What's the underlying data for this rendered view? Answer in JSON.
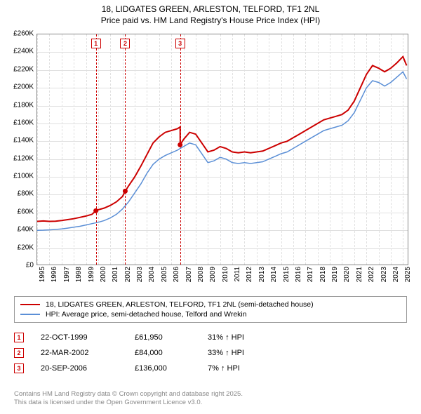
{
  "title": {
    "line1": "18, LIDGATES GREEN, ARLESTON, TELFORD, TF1 2NL",
    "line2": "Price paid vs. HM Land Registry's House Price Index (HPI)",
    "fontsize": 12,
    "color": "#000000"
  },
  "chart": {
    "type": "line",
    "background_color": "#ffffff",
    "grid_color": "#e0e0e0",
    "border_color": "#888888",
    "xlim": [
      1995,
      2025.5
    ],
    "ylim": [
      0,
      260000
    ],
    "ytick_step": 20000,
    "yticks": [
      "£0",
      "£20K",
      "£40K",
      "£60K",
      "£80K",
      "£100K",
      "£120K",
      "£140K",
      "£160K",
      "£180K",
      "£200K",
      "£220K",
      "£240K",
      "£260K"
    ],
    "xticks": [
      "1995",
      "1996",
      "1997",
      "1998",
      "1999",
      "2000",
      "2001",
      "2002",
      "2003",
      "2004",
      "2005",
      "2006",
      "2007",
      "2008",
      "2009",
      "2010",
      "2011",
      "2012",
      "2013",
      "2014",
      "2015",
      "2016",
      "2017",
      "2018",
      "2019",
      "2020",
      "2021",
      "2022",
      "2023",
      "2024",
      "2025"
    ],
    "label_fontsize": 10
  },
  "series": {
    "price_paid": {
      "label": "18, LIDGATES GREEN, ARLESTON, TELFORD, TF1 2NL (semi-detached house)",
      "color": "#cc0000",
      "line_width": 2,
      "data": [
        [
          1995.0,
          50000
        ],
        [
          1995.5,
          50500
        ],
        [
          1996.0,
          50000
        ],
        [
          1996.5,
          50200
        ],
        [
          1997.0,
          51000
        ],
        [
          1997.5,
          52000
        ],
        [
          1998.0,
          53000
        ],
        [
          1998.5,
          54500
        ],
        [
          1999.0,
          56000
        ],
        [
          1999.5,
          58000
        ],
        [
          1999.81,
          61950
        ],
        [
          2000.0,
          63000
        ],
        [
          2000.5,
          65000
        ],
        [
          2001.0,
          68000
        ],
        [
          2001.5,
          72000
        ],
        [
          2002.0,
          78000
        ],
        [
          2002.22,
          84000
        ],
        [
          2002.5,
          90000
        ],
        [
          2003.0,
          100000
        ],
        [
          2003.5,
          112000
        ],
        [
          2004.0,
          125000
        ],
        [
          2004.5,
          138000
        ],
        [
          2005.0,
          145000
        ],
        [
          2005.5,
          150000
        ],
        [
          2006.0,
          152000
        ],
        [
          2006.5,
          154000
        ],
        [
          2006.72,
          156000
        ],
        [
          2006.73,
          136000
        ],
        [
          2007.0,
          142000
        ],
        [
          2007.5,
          150000
        ],
        [
          2008.0,
          148000
        ],
        [
          2008.5,
          138000
        ],
        [
          2009.0,
          128000
        ],
        [
          2009.5,
          130000
        ],
        [
          2010.0,
          134000
        ],
        [
          2010.5,
          132000
        ],
        [
          2011.0,
          128000
        ],
        [
          2011.5,
          127000
        ],
        [
          2012.0,
          128000
        ],
        [
          2012.5,
          127000
        ],
        [
          2013.0,
          128000
        ],
        [
          2013.5,
          129000
        ],
        [
          2014.0,
          132000
        ],
        [
          2014.5,
          135000
        ],
        [
          2015.0,
          138000
        ],
        [
          2015.5,
          140000
        ],
        [
          2016.0,
          144000
        ],
        [
          2016.5,
          148000
        ],
        [
          2017.0,
          152000
        ],
        [
          2017.5,
          156000
        ],
        [
          2018.0,
          160000
        ],
        [
          2018.5,
          164000
        ],
        [
          2019.0,
          166000
        ],
        [
          2019.5,
          168000
        ],
        [
          2020.0,
          170000
        ],
        [
          2020.5,
          175000
        ],
        [
          2021.0,
          185000
        ],
        [
          2021.5,
          200000
        ],
        [
          2022.0,
          215000
        ],
        [
          2022.5,
          225000
        ],
        [
          2023.0,
          222000
        ],
        [
          2023.5,
          218000
        ],
        [
          2024.0,
          222000
        ],
        [
          2024.5,
          228000
        ],
        [
          2025.0,
          235000
        ],
        [
          2025.3,
          225000
        ]
      ]
    },
    "hpi": {
      "label": "HPI: Average price, semi-detached house, Telford and Wrekin",
      "color": "#5b8fd6",
      "line_width": 1.5,
      "data": [
        [
          1995.0,
          40000
        ],
        [
          1995.5,
          40200
        ],
        [
          1996.0,
          40500
        ],
        [
          1996.5,
          41000
        ],
        [
          1997.0,
          41500
        ],
        [
          1997.5,
          42500
        ],
        [
          1998.0,
          43500
        ],
        [
          1998.5,
          44500
        ],
        [
          1999.0,
          46000
        ],
        [
          1999.5,
          47500
        ],
        [
          2000.0,
          49000
        ],
        [
          2000.5,
          51000
        ],
        [
          2001.0,
          54000
        ],
        [
          2001.5,
          58000
        ],
        [
          2002.0,
          64000
        ],
        [
          2002.5,
          72000
        ],
        [
          2003.0,
          82000
        ],
        [
          2003.5,
          92000
        ],
        [
          2004.0,
          104000
        ],
        [
          2004.5,
          114000
        ],
        [
          2005.0,
          120000
        ],
        [
          2005.5,
          124000
        ],
        [
          2006.0,
          127000
        ],
        [
          2006.5,
          130000
        ],
        [
          2007.0,
          134000
        ],
        [
          2007.5,
          138000
        ],
        [
          2008.0,
          136000
        ],
        [
          2008.5,
          126000
        ],
        [
          2009.0,
          116000
        ],
        [
          2009.5,
          118000
        ],
        [
          2010.0,
          122000
        ],
        [
          2010.5,
          120000
        ],
        [
          2011.0,
          116000
        ],
        [
          2011.5,
          115000
        ],
        [
          2012.0,
          116000
        ],
        [
          2012.5,
          115000
        ],
        [
          2013.0,
          116000
        ],
        [
          2013.5,
          117000
        ],
        [
          2014.0,
          120000
        ],
        [
          2014.5,
          123000
        ],
        [
          2015.0,
          126000
        ],
        [
          2015.5,
          128000
        ],
        [
          2016.0,
          132000
        ],
        [
          2016.5,
          136000
        ],
        [
          2017.0,
          140000
        ],
        [
          2017.5,
          144000
        ],
        [
          2018.0,
          148000
        ],
        [
          2018.5,
          152000
        ],
        [
          2019.0,
          154000
        ],
        [
          2019.5,
          156000
        ],
        [
          2020.0,
          158000
        ],
        [
          2020.5,
          163000
        ],
        [
          2021.0,
          172000
        ],
        [
          2021.5,
          186000
        ],
        [
          2022.0,
          200000
        ],
        [
          2022.5,
          208000
        ],
        [
          2023.0,
          206000
        ],
        [
          2023.5,
          202000
        ],
        [
          2024.0,
          206000
        ],
        [
          2024.5,
          212000
        ],
        [
          2025.0,
          218000
        ],
        [
          2025.3,
          210000
        ]
      ]
    }
  },
  "markers": [
    {
      "n": "1",
      "x": 1999.81,
      "y": 61950
    },
    {
      "n": "2",
      "x": 2002.22,
      "y": 84000
    },
    {
      "n": "3",
      "x": 2006.72,
      "y": 136000
    }
  ],
  "legend": {
    "border_color": "#999999",
    "fontsize": 10.5
  },
  "transactions": [
    {
      "n": "1",
      "date": "22-OCT-1999",
      "price": "£61,950",
      "pct": "31% ↑ HPI"
    },
    {
      "n": "2",
      "date": "22-MAR-2002",
      "price": "£84,000",
      "pct": "33% ↑ HPI"
    },
    {
      "n": "3",
      "date": "20-SEP-2006",
      "price": "£136,000",
      "pct": "7% ↑ HPI"
    }
  ],
  "attribution": {
    "line1": "Contains HM Land Registry data © Crown copyright and database right 2025.",
    "line2": "This data is licensed under the Open Government Licence v3.0.",
    "color": "#888888",
    "fontsize": 9.5
  }
}
